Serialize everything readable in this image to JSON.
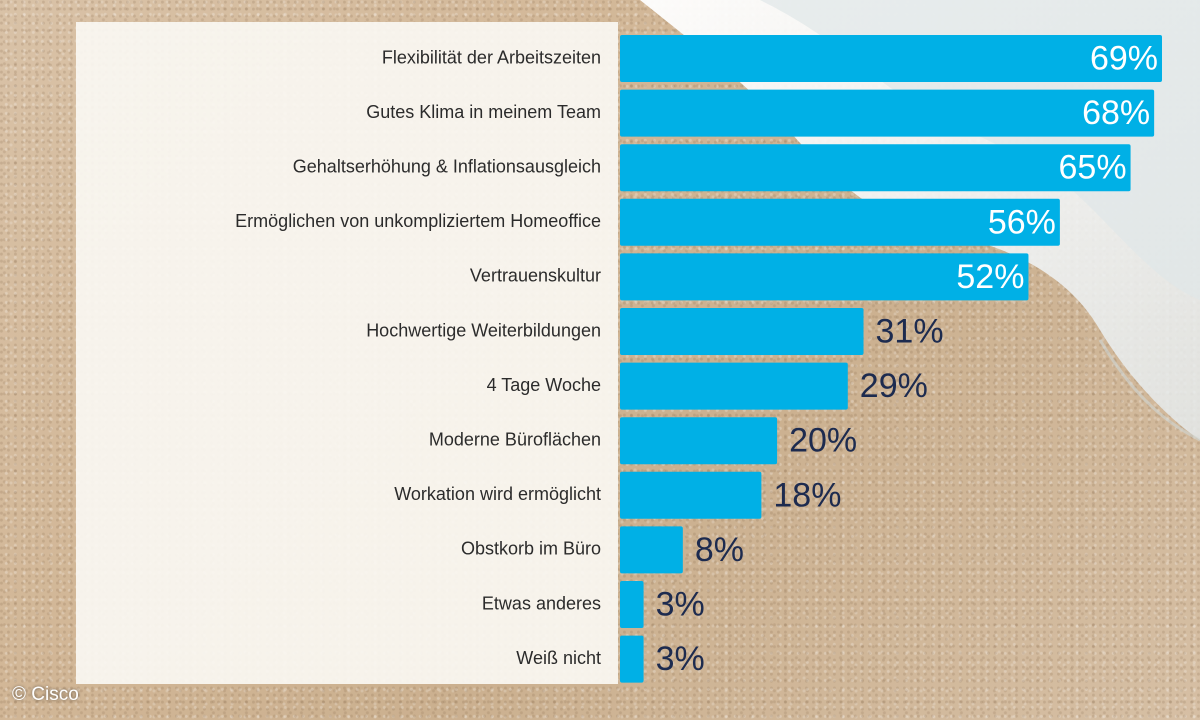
{
  "chart_data": {
    "type": "bar",
    "orientation": "horizontal",
    "categories": [
      "Flexibilität der Arbeitszeiten",
      "Gutes Klima in meinem Team",
      "Gehaltserhöhung & Inflationsausgleich",
      "Ermöglichen von unkompliziertem Homeoffice",
      "Vertrauenskultur",
      "Hochwertige Weiterbildungen",
      "4 Tage Woche",
      "Moderne Büroflächen",
      "Workation wird ermöglicht",
      "Obstkorb im Büro",
      "Etwas anderes",
      "Weiß nicht"
    ],
    "values": [
      69,
      68,
      65,
      56,
      52,
      31,
      29,
      20,
      18,
      8,
      3,
      3
    ],
    "value_labels": [
      "69%",
      "68%",
      "65%",
      "56%",
      "52%",
      "31%",
      "29%",
      "20%",
      "18%",
      "8%",
      "3%",
      "3%"
    ],
    "unit": "%",
    "xlim": [
      0,
      69
    ],
    "grid": false,
    "legend": "none",
    "bar_color": "#00b0e6",
    "label_color_inside": "#ffffff",
    "label_color_outside": "#1d2b4f"
  },
  "credit": "© Cisco"
}
